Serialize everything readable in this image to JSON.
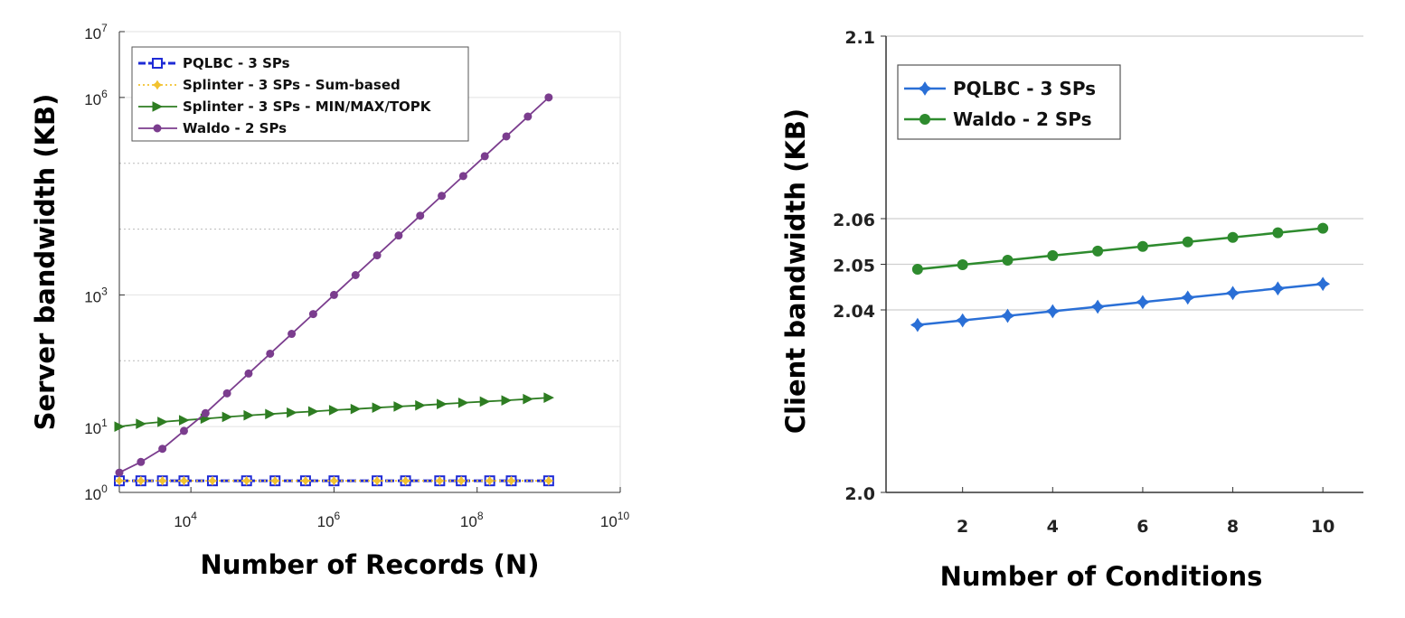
{
  "chart_data": [
    {
      "type": "line",
      "x_scale": "log",
      "y_scale": "log",
      "xlabel": "Number of Records (N)",
      "ylabel": "Server bandwidth (KB)",
      "xlim": [
        1000,
        10000000000
      ],
      "ylim": [
        1,
        10000000
      ],
      "x_ticks": [
        {
          "value": 10000,
          "base": "10",
          "exp": "4"
        },
        {
          "value": 1000000,
          "base": "10",
          "exp": "6"
        },
        {
          "value": 100000000,
          "base": "10",
          "exp": "8"
        },
        {
          "value": 10000000000,
          "base": "10",
          "exp": "10"
        }
      ],
      "y_ticks": [
        {
          "value": 1,
          "base": "10",
          "exp": "0"
        },
        {
          "value": 10,
          "base": "10",
          "exp": "1"
        },
        {
          "value": 1000,
          "base": "10",
          "exp": "3"
        },
        {
          "value": 1000000,
          "base": "10",
          "exp": "6"
        },
        {
          "value": 10000000,
          "base": "10",
          "exp": "7"
        }
      ],
      "grid_y": [
        10,
        100,
        1000,
        10000,
        100000,
        1000000,
        10000000
      ],
      "legend_position": "top-left",
      "series": [
        {
          "name": "PQLBC - 3 SPs",
          "color": "#1f2bd6",
          "marker": "square",
          "x": [
            1000,
            2000,
            4000,
            8000,
            20000,
            60000,
            150000,
            400000,
            1000000,
            4000000,
            10000000,
            30000000,
            60000000,
            150000000,
            300000000,
            1000000000
          ],
          "values": [
            1.5,
            1.5,
            1.5,
            1.5,
            1.5,
            1.5,
            1.5,
            1.5,
            1.5,
            1.5,
            1.5,
            1.5,
            1.5,
            1.5,
            1.5,
            1.5
          ]
        },
        {
          "name": "Splinter - 3 SPs - Sum-based",
          "color": "#f2c230",
          "marker": "star",
          "x": [
            1000,
            2000,
            4000,
            8000,
            20000,
            60000,
            150000,
            400000,
            1000000,
            4000000,
            10000000,
            30000000,
            60000000,
            150000000,
            300000000,
            1000000000
          ],
          "values": [
            1.5,
            1.5,
            1.5,
            1.5,
            1.5,
            1.5,
            1.5,
            1.5,
            1.5,
            1.5,
            1.5,
            1.5,
            1.5,
            1.5,
            1.5,
            1.5
          ]
        },
        {
          "name": "Splinter - 3 SPs - MIN/MAX/TOPK",
          "color": "#2e7d22",
          "marker": "triangle-right",
          "x": [
            1000,
            2000,
            4000,
            8000,
            16000,
            32000,
            64000,
            128000,
            256000,
            512000,
            1000000,
            2000000,
            4000000,
            8000000,
            16000000,
            32000000,
            64000000,
            128000000,
            256000000,
            512000000,
            1000000000
          ],
          "values": [
            10,
            11,
            11.8,
            12.5,
            13.2,
            14,
            14.8,
            15.5,
            16.3,
            17,
            17.8,
            18.5,
            19.4,
            20.2,
            21,
            22,
            23,
            24,
            25,
            26.2,
            27.5
          ]
        },
        {
          "name": "Waldo - 2 SPs",
          "color": "#7b3d8e",
          "marker": "circle",
          "x": [
            1000,
            2000,
            4000,
            8000,
            16000,
            32000,
            64000,
            128000,
            256000,
            512000,
            1000000,
            2000000,
            4000000,
            8000000,
            16000000,
            32000000,
            64000000,
            128000000,
            256000000,
            512000000,
            1000000000
          ],
          "values": [
            2,
            2.9,
            4.6,
            8.6,
            16,
            32,
            64,
            128,
            256,
            512,
            1000,
            2000,
            4000,
            8000,
            16000,
            32000,
            64000,
            128000,
            256000,
            512000,
            1000000
          ]
        }
      ]
    },
    {
      "type": "line",
      "xlabel": "Number of Conditions",
      "ylabel": "Client bandwidth (KB)",
      "xlim": [
        0.3,
        10.9
      ],
      "ylim": [
        2.0,
        2.1
      ],
      "x_ticks": [
        "2",
        "4",
        "6",
        "8",
        "10"
      ],
      "x_tick_values": [
        2,
        4,
        6,
        8,
        10
      ],
      "y_ticks": [
        "2.0",
        "2.04",
        "2.05",
        "2.06",
        "2.1"
      ],
      "y_tick_values": [
        2.0,
        2.04,
        2.05,
        2.06,
        2.1
      ],
      "grid_y": [
        2.04,
        2.05,
        2.06,
        2.1
      ],
      "legend_position": "top-left",
      "series": [
        {
          "name": "PQLBC - 3 SPs",
          "color": "#2a6fd6",
          "marker": "star",
          "x": [
            1,
            2,
            3,
            4,
            5,
            6,
            7,
            8,
            9,
            10
          ],
          "values": [
            2.0367,
            2.0377,
            2.0387,
            2.0397,
            2.0407,
            2.0417,
            2.0427,
            2.0437,
            2.0447,
            2.0457
          ]
        },
        {
          "name": "Waldo - 2 SPs",
          "color": "#2e8b2e",
          "marker": "circle",
          "x": [
            1,
            2,
            3,
            4,
            5,
            6,
            7,
            8,
            9,
            10
          ],
          "values": [
            2.0489,
            2.0499,
            2.0509,
            2.0519,
            2.0529,
            2.0539,
            2.0549,
            2.0559,
            2.0569,
            2.0579
          ]
        }
      ]
    }
  ]
}
